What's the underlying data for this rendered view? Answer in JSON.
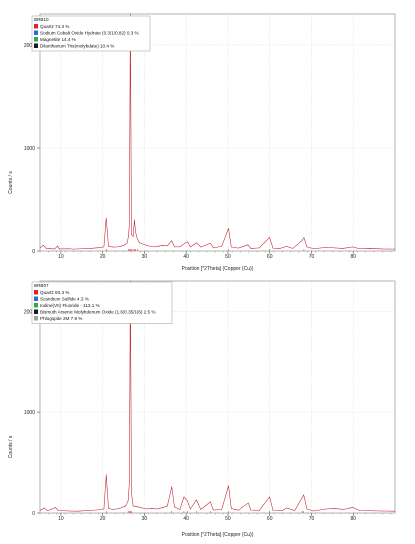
{
  "chart_data": [
    {
      "type": "line",
      "sample_label": "BRB10",
      "xlabel": "Position [°2Theta] (Copper (Cu))",
      "ylabel": "Counts / s",
      "xlim": [
        5,
        90
      ],
      "ylim": [
        0,
        2300
      ],
      "xticks": [
        10,
        20,
        30,
        40,
        50,
        60,
        70,
        80
      ],
      "yticks": [
        0,
        1000,
        2000
      ],
      "grid": true,
      "legend_placement": "top-left",
      "legend": [
        {
          "label": "Quartz 74.3 %",
          "color": "#e0202a"
        },
        {
          "label": "Sodium Cobalt Oxide Hydrate (0.3/1/0.82) 0.3 %",
          "color": "#2a6cd4"
        },
        {
          "label": "Magnetite 14.4 %",
          "color": "#2ea84a"
        },
        {
          "label": "Dilanthanum Tris(molybdate) 10.4 %",
          "color": "#1a1a1a"
        }
      ],
      "baseline": 12,
      "series": [
        {
          "values": [
            [
              5.0,
              30
            ],
            [
              5.8,
              55
            ],
            [
              6.5,
              25
            ],
            [
              8.5,
              20
            ],
            [
              9.2,
              48
            ],
            [
              9.6,
              20
            ],
            [
              12.0,
              22
            ],
            [
              13.0,
              18
            ],
            [
              15.0,
              22
            ],
            [
              17.0,
              25
            ],
            [
              19.0,
              32
            ],
            [
              20.3,
              40
            ],
            [
              20.85,
              320
            ],
            [
              21.4,
              45
            ],
            [
              22.5,
              38
            ],
            [
              23.6,
              40
            ],
            [
              24.5,
              48
            ],
            [
              25.3,
              60
            ],
            [
              25.9,
              80
            ],
            [
              26.2,
              150
            ],
            [
              26.4,
              260
            ],
            [
              26.64,
              2300
            ],
            [
              26.9,
              160
            ],
            [
              27.3,
              140
            ],
            [
              27.6,
              300
            ],
            [
              27.9,
              180
            ],
            [
              28.3,
              120
            ],
            [
              28.8,
              80
            ],
            [
              29.5,
              70
            ],
            [
              30.5,
              55
            ],
            [
              31.5,
              45
            ],
            [
              32.5,
              40
            ],
            [
              33.5,
              48
            ],
            [
              34.5,
              55
            ],
            [
              35.5,
              50
            ],
            [
              36.5,
              100
            ],
            [
              37.2,
              40
            ],
            [
              38.5,
              40
            ],
            [
              39.5,
              70
            ],
            [
              40.3,
              90
            ],
            [
              41.0,
              40
            ],
            [
              42.5,
              80
            ],
            [
              43.5,
              38
            ],
            [
              45.8,
              75
            ],
            [
              46.5,
              30
            ],
            [
              48.5,
              45
            ],
            [
              50.14,
              220
            ],
            [
              50.8,
              40
            ],
            [
              52.5,
              28
            ],
            [
              54.8,
              60
            ],
            [
              55.5,
              25
            ],
            [
              57.5,
              30
            ],
            [
              59.96,
              130
            ],
            [
              60.8,
              28
            ],
            [
              62.5,
              25
            ],
            [
              64.0,
              45
            ],
            [
              65.5,
              25
            ],
            [
              67.7,
              100
            ],
            [
              68.2,
              130
            ],
            [
              68.9,
              40
            ],
            [
              70.5,
              22
            ],
            [
              73.5,
              35
            ],
            [
              75.5,
              30
            ],
            [
              77.5,
              25
            ],
            [
              79.9,
              40
            ],
            [
              81.5,
              22
            ],
            [
              84.0,
              25
            ],
            [
              87.0,
              20
            ],
            [
              90.0,
              18
            ]
          ]
        }
      ]
    },
    {
      "type": "line",
      "sample_label": "BRB07",
      "xlabel": "Position [°2Theta] (Copper (Cu))",
      "ylabel": "Counts / s",
      "xlim": [
        5,
        90
      ],
      "ylim": [
        0,
        2300
      ],
      "xticks": [
        10,
        20,
        30,
        40,
        50,
        60,
        70,
        80
      ],
      "yticks": [
        0,
        1000,
        2000
      ],
      "grid": true,
      "legend_placement": "top-left",
      "legend": [
        {
          "label": "Quartz 93.3 %",
          "color": "#e0202a"
        },
        {
          "label": "Scandium Sulfide 4.3 %",
          "color": "#2a6cd4"
        },
        {
          "label": "Iodine(VII) Fluoride - 113.1 %",
          "color": "#2ea84a"
        },
        {
          "label": "Bismuth Arsenic Molybdenum Oxide (1.6/0.35/1/6) 2.5 %",
          "color": "#1a1a1a"
        },
        {
          "label": "Phlogopite 2M 7.9 %",
          "color": "#a0a0a0"
        }
      ],
      "baseline": 8,
      "series": [
        {
          "values": [
            [
              5.0,
              25
            ],
            [
              6.0,
              50
            ],
            [
              6.8,
              22
            ],
            [
              8.7,
              55
            ],
            [
              9.3,
              25
            ],
            [
              12.0,
              20
            ],
            [
              14.0,
              18
            ],
            [
              16.5,
              25
            ],
            [
              18.5,
              30
            ],
            [
              20.3,
              40
            ],
            [
              20.86,
              380
            ],
            [
              21.4,
              45
            ],
            [
              22.5,
              35
            ],
            [
              24.0,
              45
            ],
            [
              25.5,
              70
            ],
            [
              26.1,
              120
            ],
            [
              26.4,
              300
            ],
            [
              26.64,
              2300
            ],
            [
              26.9,
              200
            ],
            [
              27.3,
              70
            ],
            [
              28.5,
              60
            ],
            [
              29.5,
              50
            ],
            [
              30.5,
              40
            ],
            [
              31.8,
              45
            ],
            [
              33.0,
              40
            ],
            [
              34.5,
              55
            ],
            [
              35.5,
              70
            ],
            [
              36.54,
              260
            ],
            [
              37.2,
              60
            ],
            [
              38.5,
              35
            ],
            [
              39.47,
              160
            ],
            [
              40.29,
              120
            ],
            [
              41.0,
              40
            ],
            [
              42.45,
              130
            ],
            [
              43.5,
              35
            ],
            [
              45.79,
              110
            ],
            [
              46.5,
              30
            ],
            [
              48.5,
              35
            ],
            [
              50.14,
              270
            ],
            [
              50.8,
              45
            ],
            [
              52.5,
              28
            ],
            [
              54.87,
              100
            ],
            [
              55.5,
              30
            ],
            [
              57.5,
              25
            ],
            [
              59.95,
              160
            ],
            [
              60.8,
              25
            ],
            [
              63.0,
              22
            ],
            [
              64.0,
              50
            ],
            [
              66.0,
              25
            ],
            [
              67.74,
              150
            ],
            [
              68.14,
              180
            ],
            [
              68.9,
              40
            ],
            [
              70.5,
              20
            ],
            [
              73.47,
              40
            ],
            [
              75.6,
              45
            ],
            [
              77.6,
              35
            ],
            [
              79.9,
              55
            ],
            [
              81.5,
              25
            ],
            [
              84.0,
              22
            ],
            [
              87.0,
              20
            ],
            [
              90.0,
              18
            ]
          ]
        }
      ]
    }
  ]
}
